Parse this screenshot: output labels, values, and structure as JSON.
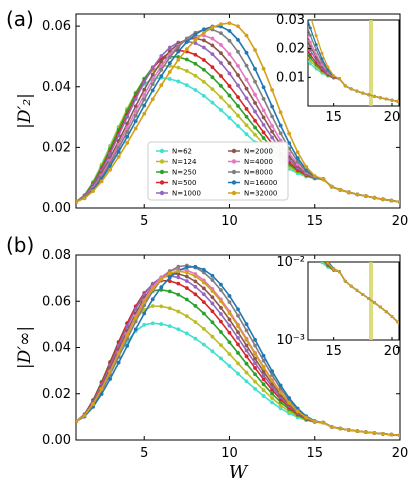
{
  "colors": [
    "#40e0d0",
    "#bcbd22",
    "#2ca02c",
    "#d62728",
    "#9467bd",
    "#8c564b",
    "#e377c2",
    "#7f7f7f",
    "#1f77b4",
    "#d4a017"
  ],
  "legend": {
    "placement": "lower-left-center",
    "entries": [
      "N=62",
      "N=124",
      "N=250",
      "N=500",
      "N=1000",
      "N=2000",
      "N=4000",
      "N=8000",
      "N=16000",
      "N=32000"
    ]
  },
  "chart_data": [
    {
      "type": "line",
      "panel_label": "(a)",
      "ylabel": "|D′₂|",
      "xlabel": "",
      "xlim": [
        1,
        20
      ],
      "ylim": [
        0,
        0.064
      ],
      "xticks": [
        "5",
        "10",
        "15",
        "20"
      ],
      "yticks": [
        "0.00",
        "0.02",
        "0.04",
        "0.06"
      ],
      "series_params": [
        {
          "name": "N=62",
          "peak_x": 5.8,
          "peak_y": 0.043
        },
        {
          "name": "N=124",
          "peak_x": 6.2,
          "peak_y": 0.047
        },
        {
          "name": "N=250",
          "peak_x": 6.6,
          "peak_y": 0.05
        },
        {
          "name": "N=500",
          "peak_x": 7.0,
          "peak_y": 0.052
        },
        {
          "name": "N=1000",
          "peak_x": 7.4,
          "peak_y": 0.055
        },
        {
          "name": "N=2000",
          "peak_x": 7.9,
          "peak_y": 0.056
        },
        {
          "name": "N=4000",
          "peak_x": 8.3,
          "peak_y": 0.057
        },
        {
          "name": "N=8000",
          "peak_x": 8.8,
          "peak_y": 0.059
        },
        {
          "name": "N=16000",
          "peak_x": 9.3,
          "peak_y": 0.06
        },
        {
          "name": "N=32000",
          "peak_x": 10.0,
          "peak_y": 0.061
        }
      ],
      "start_y": 0.002,
      "end_y": 0.002,
      "crossing": {
        "x": 15.5,
        "y": 0.0095
      },
      "inset": {
        "xlim": [
          12.8,
          20.6
        ],
        "ylim": [
          0.0,
          0.03
        ],
        "xticks": [
          "15",
          "20"
        ],
        "yticks": [
          "0.01",
          "0.02",
          "0.03"
        ],
        "vline_x": 18.2
      }
    },
    {
      "type": "line",
      "panel_label": "(b)",
      "ylabel": "|D′∞|",
      "xlabel": "W",
      "xlim": [
        1,
        20
      ],
      "ylim": [
        0,
        0.08
      ],
      "xticks": [
        "5",
        "10",
        "15",
        "20"
      ],
      "yticks": [
        "0.00",
        "0.02",
        "0.04",
        "0.06",
        "0.08"
      ],
      "series_params": [
        {
          "name": "N=62",
          "peak_x": 5.4,
          "peak_y": 0.0505
        },
        {
          "name": "N=124",
          "peak_x": 5.6,
          "peak_y": 0.058
        },
        {
          "name": "N=250",
          "peak_x": 5.8,
          "peak_y": 0.065
        },
        {
          "name": "N=500",
          "peak_x": 6.1,
          "peak_y": 0.069
        },
        {
          "name": "N=1000",
          "peak_x": 6.4,
          "peak_y": 0.071
        },
        {
          "name": "N=2000",
          "peak_x": 6.7,
          "peak_y": 0.072
        },
        {
          "name": "N=4000",
          "peak_x": 7.0,
          "peak_y": 0.074
        },
        {
          "name": "N=8000",
          "peak_x": 7.4,
          "peak_y": 0.0755
        },
        {
          "name": "N=16000",
          "peak_x": 7.8,
          "peak_y": 0.075
        },
        {
          "name": "N=32000",
          "peak_x": 7.0,
          "peak_y": 0.073
        }
      ],
      "start_y": 0.008,
      "end_y": 0.002,
      "crossing": {
        "x": 15.5,
        "y": 0.0075
      },
      "inset": {
        "xlim": [
          12.8,
          20.6
        ],
        "ylim_log": [
          0.001,
          0.01
        ],
        "xticks": [
          "15",
          "20"
        ],
        "yticks": [
          "10⁻²",
          "10⁻³"
        ],
        "vline_x": 18.2
      }
    }
  ]
}
